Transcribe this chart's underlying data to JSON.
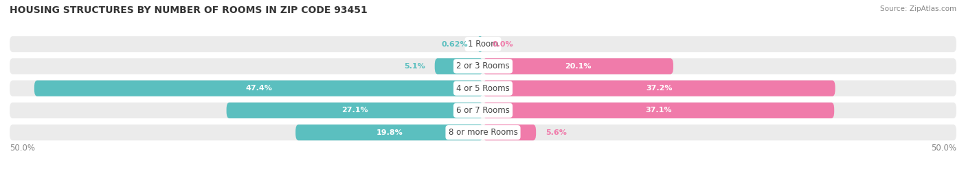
{
  "title": "HOUSING STRUCTURES BY NUMBER OF ROOMS IN ZIP CODE 93451",
  "source": "Source: ZipAtlas.com",
  "categories": [
    "1 Room",
    "2 or 3 Rooms",
    "4 or 5 Rooms",
    "6 or 7 Rooms",
    "8 or more Rooms"
  ],
  "owner_values": [
    0.62,
    5.1,
    47.4,
    27.1,
    19.8
  ],
  "renter_values": [
    0.0,
    20.1,
    37.2,
    37.1,
    5.6
  ],
  "owner_color": "#5BBFBF",
  "renter_color": "#F07BAA",
  "bar_row_bg": "#EBEBEB",
  "axis_label_left": "50.0%",
  "axis_label_right": "50.0%",
  "max_val": 50.0,
  "figsize": [
    14.06,
    2.69
  ],
  "dpi": 100
}
